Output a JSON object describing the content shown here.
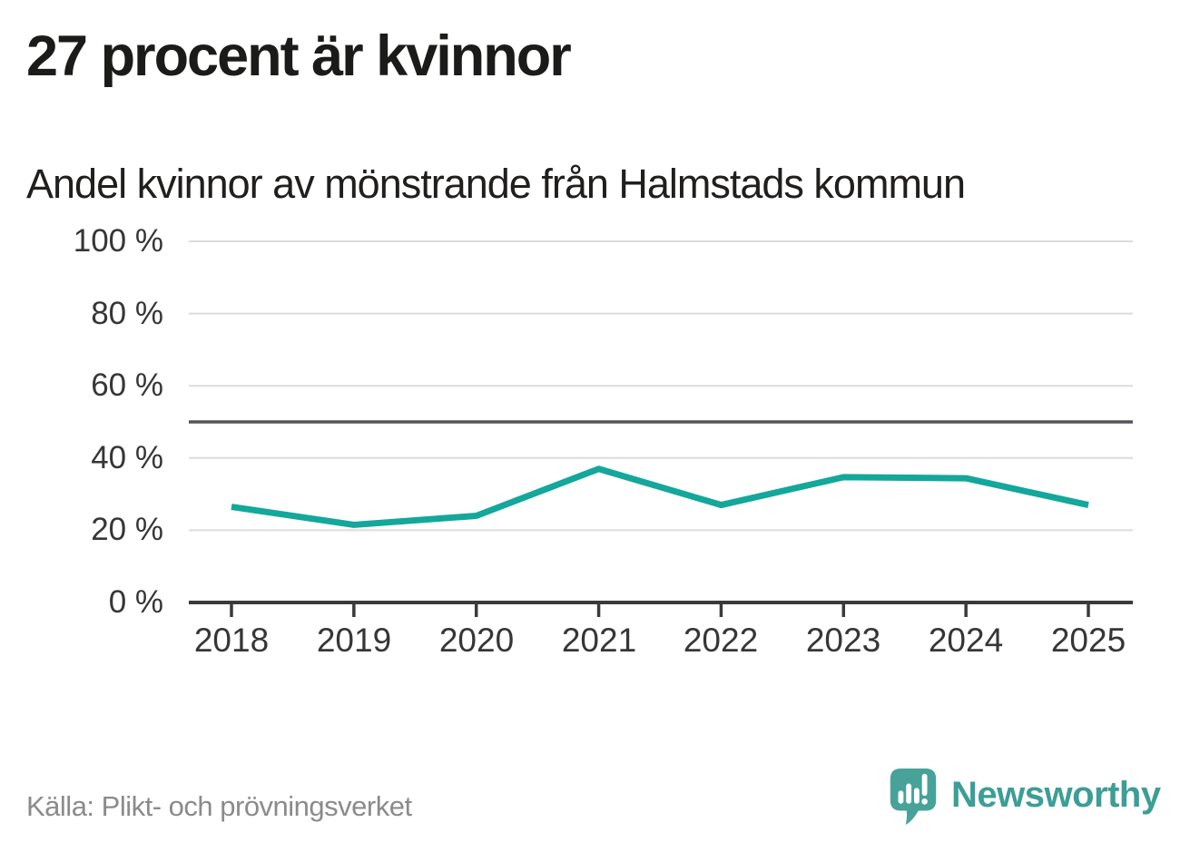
{
  "header": {
    "title": "27 procent är kvinnor",
    "subtitle": "Andel kvinnor av mönstrande från Halmstads kommun"
  },
  "chart_data": {
    "type": "line",
    "title": "27 procent är kvinnor",
    "subtitle": "Andel kvinnor av mönstrande från Halmstads kommun",
    "categories": [
      "2018",
      "2019",
      "2020",
      "2021",
      "2022",
      "2023",
      "2024",
      "2025"
    ],
    "series": [
      {
        "name": "Andel kvinnor av mönstrande",
        "values": [
          26.5,
          21.5,
          24,
          37,
          27,
          34.7,
          34.4,
          27
        ]
      }
    ],
    "xlabel": "",
    "ylabel": "",
    "ylim": [
      0,
      100
    ],
    "y_tick_labels": [
      "100 %",
      "80 %",
      "60 %",
      "40 %",
      "20 %",
      "0 %"
    ],
    "y_tick_values": [
      100,
      80,
      60,
      40,
      20,
      0
    ],
    "reference_line": {
      "value": 50
    },
    "grid": "horizontal",
    "legend": "none",
    "colors": {
      "line": "#14A79B",
      "reference": "#55545C",
      "grid": "#DCDCDC",
      "axis": "#3A3A3A"
    }
  },
  "footer": {
    "source": "Källa: Plikt- och prövningsverket",
    "brand": "Newsworthy",
    "brand_color": "#47A29A"
  }
}
